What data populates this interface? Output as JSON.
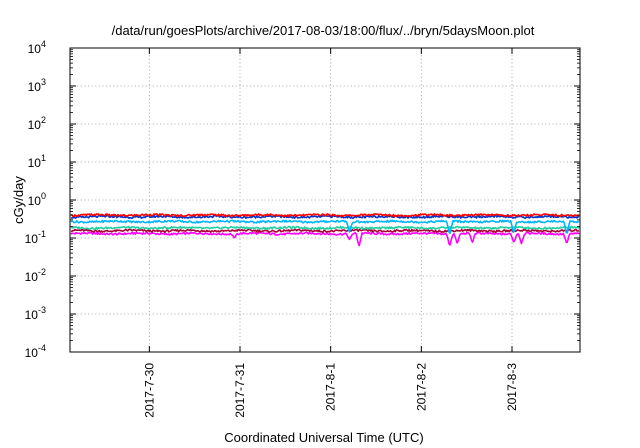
{
  "chart_data": {
    "type": "line",
    "title": "/data/run/goesPlots/archive/2017-08-03/18:00/flux/../bryn/5daysMoon.plot",
    "xlabel": "Coordinated Universal Time (UTC)",
    "ylabel": "cGy/day",
    "yscale": "log",
    "ylim": [
      0.0001,
      10000
    ],
    "xlim": [
      "2017-07-29T03:00",
      "2017-08-03T18:00"
    ],
    "grid": true,
    "legend": "none",
    "x_ticks": [
      {
        "label": "2017-7-30",
        "date": "2017-07-30T00:00"
      },
      {
        "label": "2017-7-31",
        "date": "2017-07-31T00:00"
      },
      {
        "label": "2017-8-1",
        "date": "2017-08-01T00:00"
      },
      {
        "label": "2017-8-2",
        "date": "2017-08-02T00:00"
      },
      {
        "label": "2017-8-3",
        "date": "2017-08-03T00:00"
      }
    ],
    "y_ticks": [
      {
        "base": "10",
        "exp": "-4",
        "value": 0.0001
      },
      {
        "base": "10",
        "exp": "-3",
        "value": 0.001
      },
      {
        "base": "10",
        "exp": "-2",
        "value": 0.01
      },
      {
        "base": "10",
        "exp": "-1",
        "value": 0.1
      },
      {
        "base": "10",
        "exp": "0",
        "value": 1
      },
      {
        "base": "10",
        "exp": "1",
        "value": 10
      },
      {
        "base": "10",
        "exp": "2",
        "value": 100
      },
      {
        "base": "10",
        "exp": "3",
        "value": 1000
      },
      {
        "base": "10",
        "exp": "4",
        "value": 10000
      }
    ],
    "series": [
      {
        "color": "#ff00ff",
        "level": 0.13,
        "dips": [
          {
            "date": "2017-07-30T22:30",
            "value": 0.1
          },
          {
            "date": "2017-08-01T05:00",
            "value": 0.09
          },
          {
            "date": "2017-08-01T07:30",
            "value": 0.06
          },
          {
            "date": "2017-08-02T07:30",
            "value": 0.06
          },
          {
            "date": "2017-08-02T09:30",
            "value": 0.07
          },
          {
            "date": "2017-08-02T13:30",
            "value": 0.075
          },
          {
            "date": "2017-08-03T00:30",
            "value": 0.075
          },
          {
            "date": "2017-08-03T02:30",
            "value": 0.07
          },
          {
            "date": "2017-08-03T14:30",
            "value": 0.07
          }
        ]
      },
      {
        "color": "#aa0033",
        "level": 0.155,
        "dips": []
      },
      {
        "color": "#20d0a0",
        "level": 0.185,
        "dips": []
      },
      {
        "color": "#00b4ff",
        "level": 0.27,
        "dips": [
          {
            "date": "2017-08-01T05:00",
            "value": 0.14
          },
          {
            "date": "2017-08-02T07:30",
            "value": 0.12
          },
          {
            "date": "2017-08-03T00:30",
            "value": 0.13
          },
          {
            "date": "2017-08-03T14:30",
            "value": 0.12
          }
        ]
      },
      {
        "color": "#0033cc",
        "level": 0.36,
        "dips": []
      },
      {
        "color": "#ff0000",
        "level": 0.4,
        "dips": []
      }
    ]
  }
}
